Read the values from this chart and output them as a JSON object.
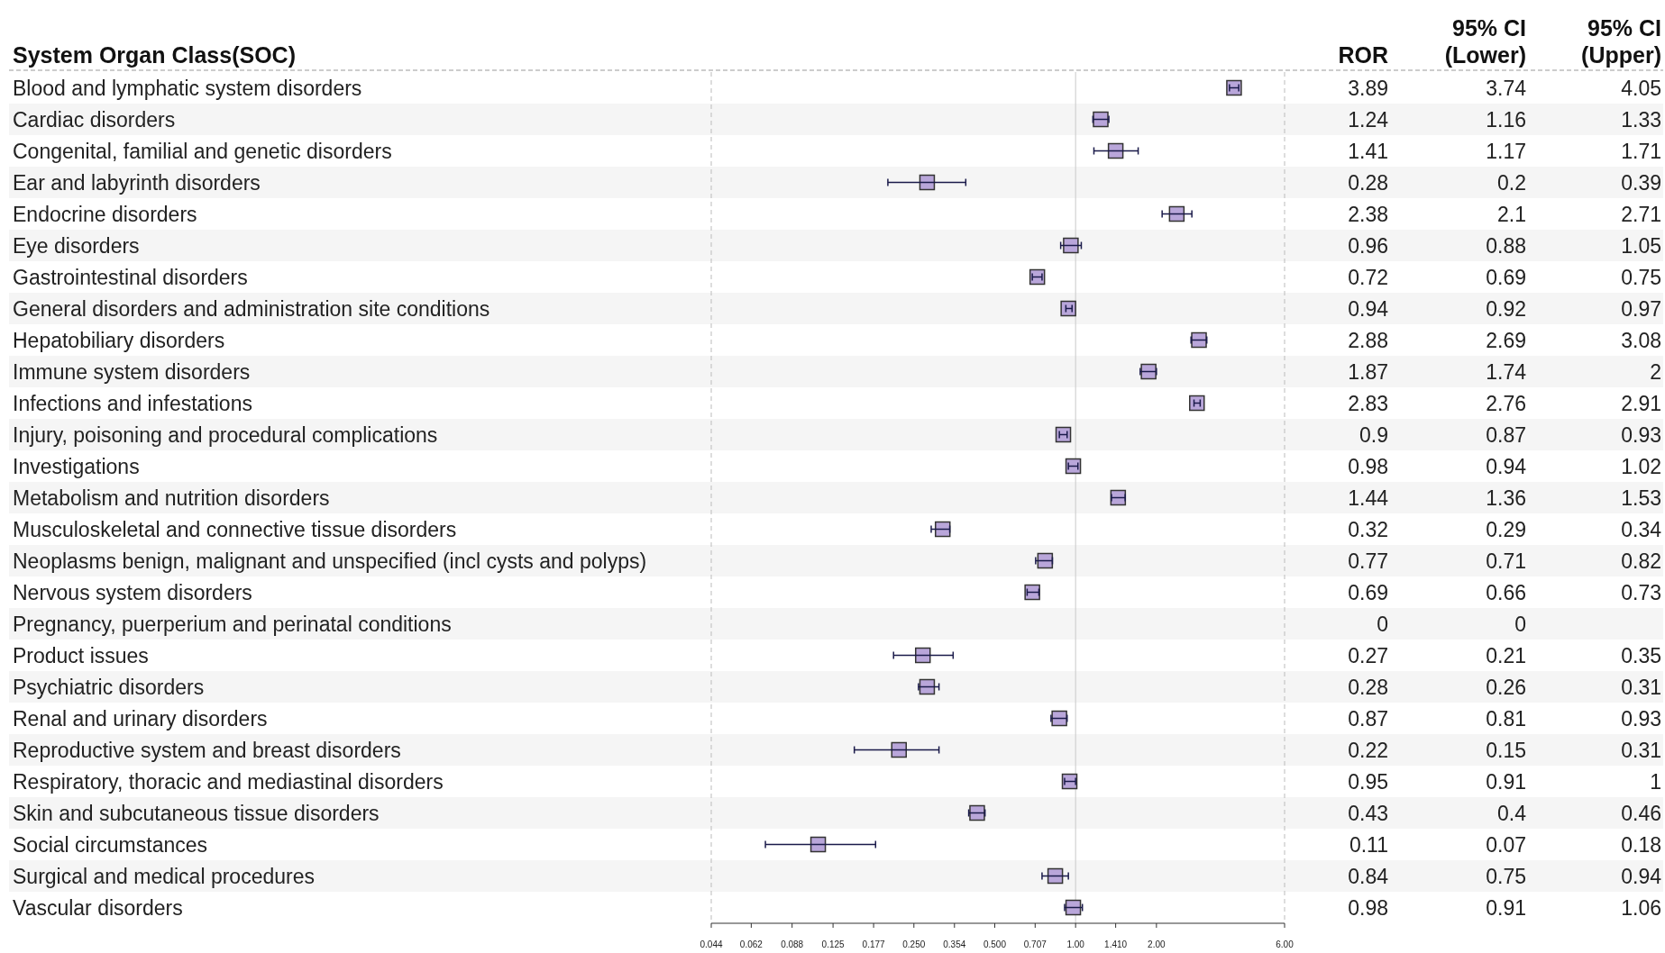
{
  "chart_data": {
    "type": "scatter",
    "orientation": "horizontal",
    "ylabel": "System Organ Class(SOC)",
    "categories": [
      "Blood and lymphatic system disorders",
      "Cardiac disorders",
      "Congenital, familial and genetic disorders",
      "Ear and labyrinth disorders",
      "Endocrine disorders",
      "Eye disorders",
      "Gastrointestinal disorders",
      "General disorders and administration site conditions",
      "Hepatobiliary disorders",
      "Immune system disorders",
      "Infections and infestations",
      "Injury, poisoning and procedural complications",
      "Investigations",
      "Metabolism and nutrition disorders",
      "Musculoskeletal and connective tissue disorders",
      "Neoplasms benign, malignant and unspecified (incl cysts and polyps)",
      "Nervous system disorders",
      "Pregnancy, puerperium and perinatal conditions",
      "Product issues",
      "Psychiatric disorders",
      "Renal and urinary disorders",
      "Reproductive system and breast disorders",
      "Respiratory, thoracic and mediastinal disorders",
      "Skin and subcutaneous tissue disorders",
      "Social circumstances",
      "Surgical and medical procedures",
      "Vascular disorders"
    ],
    "values": [
      3.89,
      1.24,
      1.41,
      0.28,
      2.38,
      0.96,
      0.72,
      0.94,
      2.88,
      1.87,
      2.83,
      0.9,
      0.98,
      1.44,
      0.32,
      0.77,
      0.69,
      null,
      0.27,
      0.28,
      0.87,
      0.22,
      0.95,
      0.43,
      0.11,
      0.84,
      0.98
    ],
    "value_labels": [
      "3.89",
      "1.24",
      "1.41",
      "0.28",
      "2.38",
      "0.96",
      "0.72",
      "0.94",
      "2.88",
      "1.87",
      "2.83",
      "0.9",
      "0.98",
      "1.44",
      "0.32",
      "0.77",
      "0.69",
      "0",
      "0.27",
      "0.28",
      "0.87",
      "0.22",
      "0.95",
      "0.43",
      "0.11",
      "0.84",
      "0.98"
    ],
    "errors": [
      [
        3.74,
        4.05
      ],
      [
        1.16,
        1.33
      ],
      [
        1.17,
        1.71
      ],
      [
        0.2,
        0.39
      ],
      [
        2.1,
        2.71
      ],
      [
        0.88,
        1.05
      ],
      [
        0.69,
        0.75
      ],
      [
        0.92,
        0.97
      ],
      [
        2.69,
        3.08
      ],
      [
        1.74,
        2
      ],
      [
        2.76,
        2.91
      ],
      [
        0.87,
        0.93
      ],
      [
        0.94,
        1.02
      ],
      [
        1.36,
        1.53
      ],
      [
        0.29,
        0.34
      ],
      [
        0.71,
        0.82
      ],
      [
        0.66,
        0.73
      ],
      null,
      [
        0.21,
        0.35
      ],
      [
        0.26,
        0.31
      ],
      [
        0.81,
        0.93
      ],
      [
        0.15,
        0.31
      ],
      [
        0.91,
        1
      ],
      [
        0.4,
        0.46
      ],
      [
        0.07,
        0.18
      ],
      [
        0.75,
        0.94
      ],
      [
        0.91,
        1.06
      ]
    ],
    "color": "#b9a6da",
    "marker": "square",
    "log": "x",
    "xlim": [
      0.044,
      6
    ],
    "xticks": [
      0.044,
      0.062,
      0.088,
      0.125,
      0.177,
      {
        "value": 0.25,
        "label": "0.250"
      },
      0.354,
      {
        "value": 0.5,
        "label": "0.500"
      },
      0.707,
      {
        "value": 1,
        "label": "1.00"
      },
      {
        "value": 1.41,
        "label": "1.410"
      },
      {
        "value": 2,
        "label": "2.00"
      },
      {
        "value": 6,
        "label": "6.00"
      }
    ],
    "ref_lines": [
      {
        "axis": "x",
        "value": 1,
        "color": "#c8c8c8"
      }
    ],
    "annotations": [
      "ROR",
      "95% CI\n(Lower)",
      "95% CI\n(Upper)",
      "3.74",
      "1.16",
      "1.17",
      "0.2",
      "2.1",
      "0.88",
      "0.69",
      "0.92",
      "2.69",
      "1.74",
      "2.76",
      "0.87",
      "0.94",
      "1.36",
      "0.29",
      "0.71",
      "0.66",
      "0",
      "0.21",
      "0.26",
      "0.81",
      "0.15",
      "0.91",
      "0.4",
      "0.07",
      "0.75",
      "0.91",
      "4.05",
      "1.33",
      "1.71",
      "0.39",
      "2.71",
      "1.05",
      "0.75",
      "0.97",
      "3.08",
      "2",
      "2.91",
      "0.93",
      "1.02",
      "1.53",
      "0.34",
      "0.82",
      "0.73",
      "0.35",
      "0.31",
      "0.93",
      "0.31",
      "1",
      "0.46",
      "0.18",
      "0.94",
      "1.06"
    ]
  }
}
